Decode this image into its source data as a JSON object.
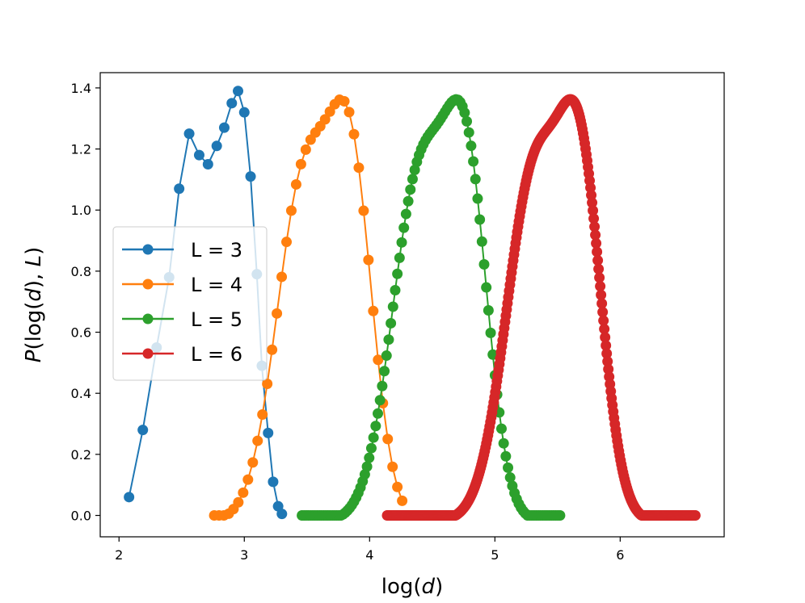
{
  "chart_data": {
    "type": "line",
    "xlabel_prefix": "log(",
    "xlabel_var": "d",
    "xlabel_suffix": ")",
    "ylabel_P": "P",
    "ylabel_mid": "(log(",
    "ylabel_d": "d",
    "ylabel_comma": "), ",
    "ylabel_L": "L",
    "ylabel_end": ")",
    "xlim": [
      1.85,
      6.83
    ],
    "ylim": [
      -0.07,
      1.45
    ],
    "xticks": [
      2,
      3,
      4,
      5,
      6
    ],
    "xtick_labels": [
      "2",
      "3",
      "4",
      "5",
      "6"
    ],
    "yticks": [
      0.0,
      0.2,
      0.4,
      0.6,
      0.8,
      1.0,
      1.2,
      1.4
    ],
    "ytick_labels": [
      "0.0",
      "0.2",
      "0.4",
      "0.6",
      "0.8",
      "1.0",
      "1.2",
      "1.4"
    ],
    "legend_position": "center-left",
    "series": [
      {
        "name": "L = 3",
        "color": "#1f77b4",
        "x": [
          2.08,
          2.19,
          2.3,
          2.4,
          2.48,
          2.56,
          2.64,
          2.71,
          2.78,
          2.84,
          2.9,
          2.95,
          3.0,
          3.05,
          3.1,
          3.14,
          3.19,
          3.23,
          3.27,
          3.3
        ],
        "y": [
          0.06,
          0.28,
          0.55,
          0.78,
          1.07,
          1.25,
          1.18,
          1.15,
          1.21,
          1.27,
          1.35,
          1.39,
          1.32,
          1.11,
          0.79,
          0.49,
          0.27,
          0.11,
          0.03,
          0.005
        ]
      },
      {
        "name": "L = 4",
        "color": "#ff7f0e",
        "gen": "l4"
      },
      {
        "name": "L = 5",
        "color": "#2ca02c",
        "gen": "l5"
      },
      {
        "name": "L = 6",
        "color": "#d62728",
        "gen": "l6"
      }
    ]
  }
}
